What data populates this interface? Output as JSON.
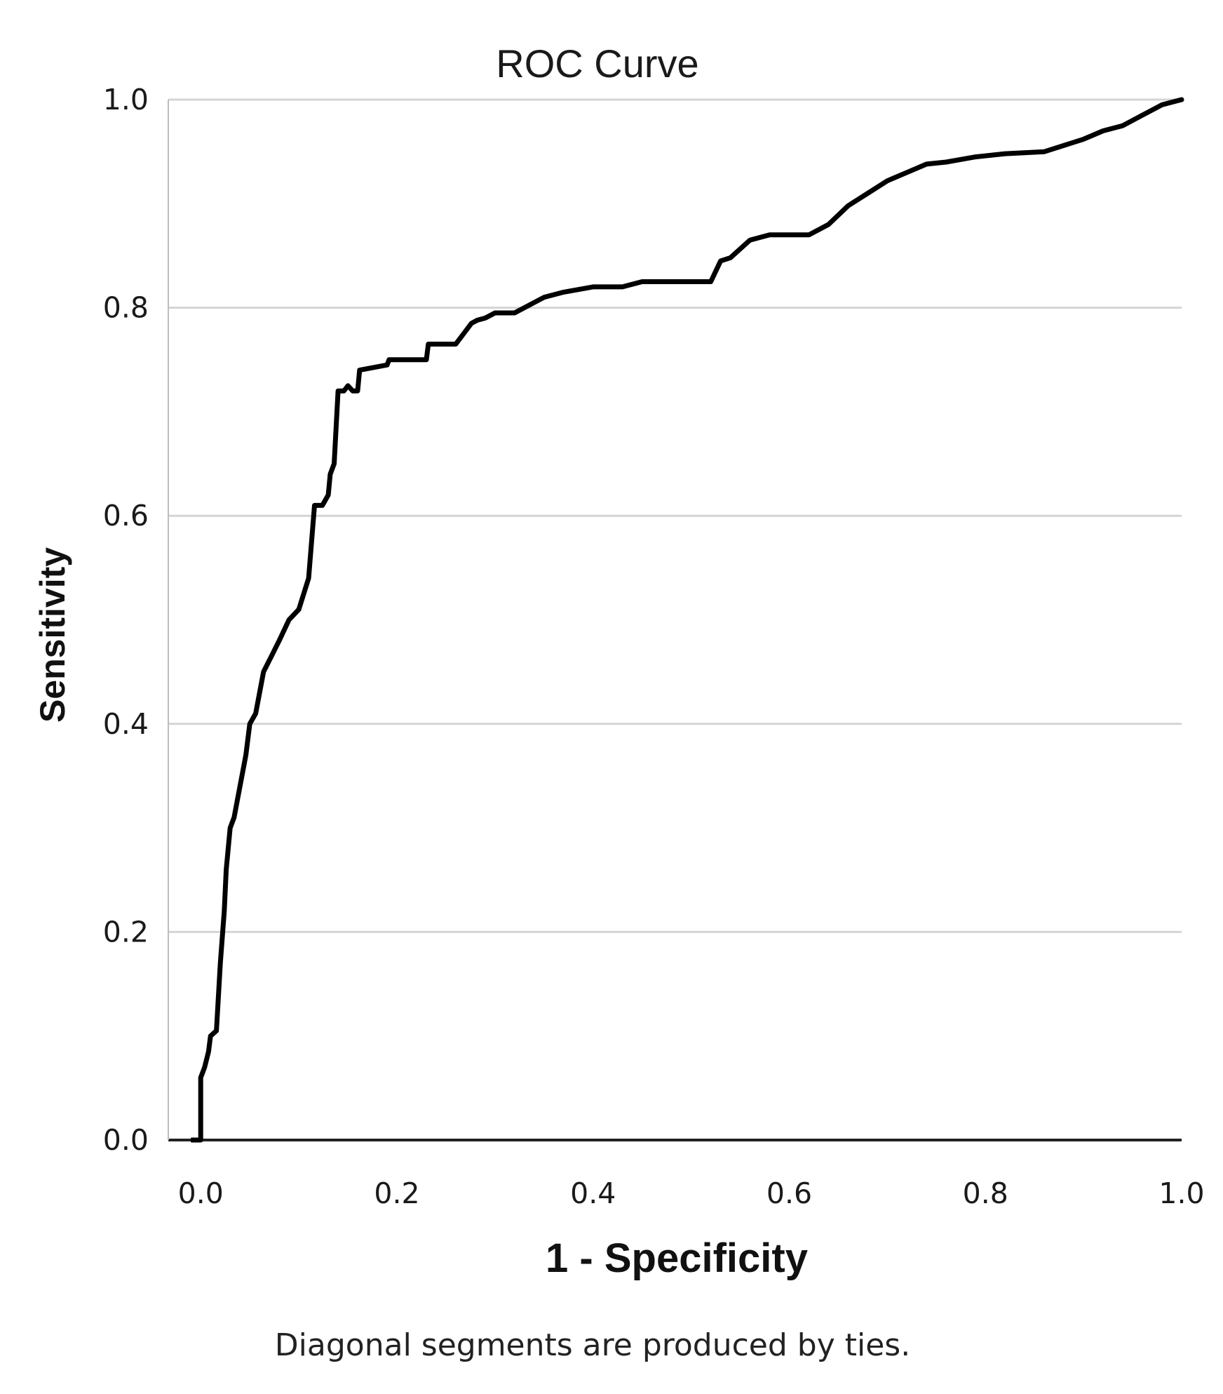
{
  "chart_data": {
    "type": "line",
    "title": "ROC Curve",
    "xlabel": "1 - Specificity",
    "ylabel": "Sensitivity",
    "footnote": "Diagonal segments are produced by ties.",
    "xlim": [
      0,
      1
    ],
    "ylim": [
      0,
      1
    ],
    "x_ticks": [
      0,
      0.2,
      0.4,
      0.6,
      0.8,
      1
    ],
    "x_tick_labels": [
      "0.0",
      "0.2",
      "0.4",
      "0.6",
      "0.8",
      "1.0"
    ],
    "y_ticks": [
      0,
      0.2,
      0.4,
      0.6,
      0.8,
      1
    ],
    "y_tick_labels": [
      "0.0",
      "0.2",
      "0.4",
      "0.6",
      "0.8",
      "1.0"
    ],
    "grid": "horizontal",
    "colors": {
      "line": "#000000",
      "grid": "#d4d4d4",
      "axis": "#222222"
    },
    "series": [
      {
        "x": [
          0.0,
          0.0,
          0.004,
          0.008,
          0.01,
          0.016,
          0.02,
          0.024,
          0.026,
          0.03,
          0.034,
          0.038,
          0.04,
          0.046,
          0.05,
          0.056,
          0.06,
          0.064,
          0.072,
          0.08,
          0.09,
          0.1,
          0.11,
          0.116,
          0.124,
          0.13,
          0.132,
          0.136,
          0.14,
          0.146,
          0.15,
          0.155,
          0.16,
          0.162,
          0.19,
          0.192,
          0.2,
          0.23,
          0.232,
          0.26,
          0.268,
          0.276,
          0.282,
          0.29,
          0.3,
          0.32,
          0.34,
          0.35,
          0.37,
          0.4,
          0.43,
          0.45,
          0.48,
          0.52,
          0.53,
          0.54,
          0.56,
          0.58,
          0.6,
          0.62,
          0.64,
          0.66,
          0.68,
          0.7,
          0.72,
          0.74,
          0.76,
          0.79,
          0.82,
          0.86,
          0.9,
          0.92,
          0.94,
          0.96,
          0.98,
          1.0
        ],
        "y": [
          0.0,
          0.06,
          0.07,
          0.085,
          0.1,
          0.105,
          0.17,
          0.22,
          0.26,
          0.3,
          0.31,
          0.33,
          0.34,
          0.37,
          0.4,
          0.41,
          0.43,
          0.45,
          0.465,
          0.48,
          0.5,
          0.51,
          0.54,
          0.61,
          0.61,
          0.62,
          0.64,
          0.65,
          0.72,
          0.72,
          0.725,
          0.72,
          0.72,
          0.74,
          0.745,
          0.75,
          0.75,
          0.75,
          0.765,
          0.765,
          0.775,
          0.785,
          0.788,
          0.79,
          0.795,
          0.795,
          0.805,
          0.81,
          0.815,
          0.82,
          0.82,
          0.825,
          0.825,
          0.825,
          0.845,
          0.848,
          0.865,
          0.87,
          0.87,
          0.87,
          0.88,
          0.898,
          0.91,
          0.922,
          0.93,
          0.938,
          0.94,
          0.945,
          0.948,
          0.95,
          0.962,
          0.97,
          0.975,
          0.985,
          0.995,
          1.0
        ]
      }
    ]
  }
}
